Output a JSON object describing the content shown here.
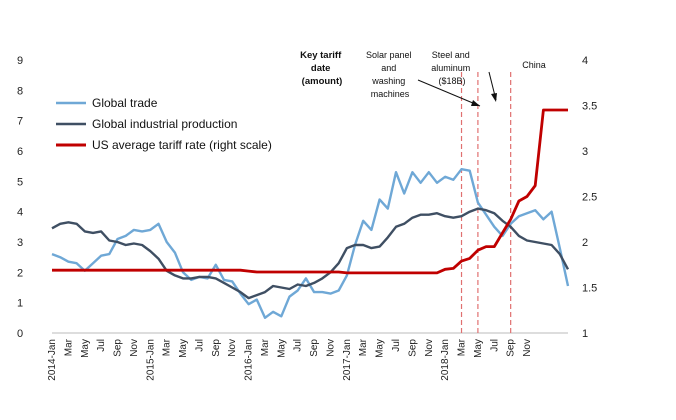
{
  "chart_data": {
    "type": "line",
    "title": "",
    "xlabel": "",
    "ylabel": "",
    "y_left_lim": [
      0,
      9
    ],
    "y_right_lim": [
      1,
      4
    ],
    "y_left_ticks": [
      "0",
      "1",
      "2",
      "3",
      "4",
      "5",
      "6",
      "7",
      "8",
      "9"
    ],
    "y_right_ticks": [
      "1",
      "1.5",
      "2",
      "2.5",
      "3",
      "3.5",
      "4"
    ],
    "x_tick_labels": [
      "2014-Jan",
      "Mar",
      "May",
      "Jul",
      "Sep",
      "Nov",
      "2015-Jan",
      "Mar",
      "May",
      "Jul",
      "Sep",
      "Nov",
      "2016-Jan",
      "Mar",
      "May",
      "Jul",
      "Sep",
      "Nov",
      "2017-Jan",
      "Mar",
      "May",
      "Jul",
      "Sep",
      "Nov",
      "2018-Jan",
      "Mar",
      "May",
      "Jul",
      "Sep",
      "Nov"
    ],
    "legend_position": "upper-left",
    "series": [
      {
        "name": "Global trade",
        "axis": "left",
        "color": "#6fa8d6",
        "values": [
          2.6,
          2.5,
          2.35,
          2.3,
          2.05,
          2.3,
          2.55,
          2.6,
          3.1,
          3.2,
          3.4,
          3.35,
          3.4,
          3.6,
          3.0,
          2.65,
          2.0,
          1.75,
          1.85,
          1.8,
          2.25,
          1.75,
          1.7,
          1.3,
          0.95,
          1.1,
          0.5,
          0.7,
          0.55,
          1.2,
          1.4,
          1.8,
          1.35,
          1.35,
          1.3,
          1.4,
          1.9,
          2.9,
          3.7,
          3.4,
          4.4,
          4.1,
          5.3,
          4.6,
          5.3,
          4.95,
          5.3,
          4.95,
          5.15,
          5.05,
          5.4,
          5.35,
          4.3,
          3.9,
          3.5,
          3.2,
          3.6,
          3.85,
          3.95,
          4.05,
          3.75,
          4.0,
          2.8,
          1.55
        ]
      },
      {
        "name": "Global industrial production",
        "axis": "left",
        "color": "#3f4f63",
        "values": [
          3.45,
          3.6,
          3.65,
          3.6,
          3.35,
          3.3,
          3.35,
          3.05,
          3.0,
          2.9,
          2.95,
          2.9,
          2.7,
          2.45,
          2.05,
          1.9,
          1.8,
          1.8,
          1.85,
          1.85,
          1.8,
          1.65,
          1.5,
          1.35,
          1.15,
          1.25,
          1.35,
          1.55,
          1.5,
          1.45,
          1.6,
          1.55,
          1.65,
          1.8,
          2.0,
          2.3,
          2.8,
          2.9,
          2.9,
          2.8,
          2.85,
          3.15,
          3.5,
          3.6,
          3.8,
          3.9,
          3.9,
          3.95,
          3.85,
          3.8,
          3.85,
          4.0,
          4.1,
          4.05,
          3.95,
          3.7,
          3.5,
          3.2,
          3.05,
          3.0,
          2.95,
          2.9,
          2.6,
          2.1
        ]
      },
      {
        "name": "US average tariff rate (right scale)",
        "axis": "right",
        "color": "#c00000",
        "values": [
          1.69,
          1.69,
          1.69,
          1.69,
          1.69,
          1.69,
          1.69,
          1.69,
          1.69,
          1.69,
          1.69,
          1.69,
          1.69,
          1.69,
          1.69,
          1.69,
          1.69,
          1.69,
          1.69,
          1.69,
          1.69,
          1.69,
          1.69,
          1.69,
          1.68,
          1.67,
          1.67,
          1.67,
          1.67,
          1.67,
          1.67,
          1.67,
          1.67,
          1.67,
          1.67,
          1.67,
          1.66,
          1.66,
          1.66,
          1.66,
          1.66,
          1.66,
          1.66,
          1.66,
          1.66,
          1.66,
          1.66,
          1.66,
          1.7,
          1.71,
          1.79,
          1.82,
          1.91,
          1.95,
          1.95,
          2.1,
          2.25,
          2.45,
          2.5,
          2.62,
          3.45,
          3.45,
          3.45,
          3.45
        ]
      }
    ],
    "tariff_dates": [
      {
        "label": "Solar panel and washing machines",
        "index": 50
      },
      {
        "label": "Steel and aluminum ($18B)",
        "index": 52
      },
      {
        "label": "China",
        "index": 56
      }
    ],
    "annotation_header": "Key tariff date (amount)",
    "annotations": {
      "header_lines": [
        "Key tariff",
        "date",
        "(amount)"
      ],
      "solar_lines": [
        "Solar panel",
        "and",
        "washing",
        "machines"
      ],
      "steel_lines": [
        "Steel and",
        "aluminum",
        "($18B)"
      ],
      "china_lines": [
        "China"
      ]
    }
  }
}
